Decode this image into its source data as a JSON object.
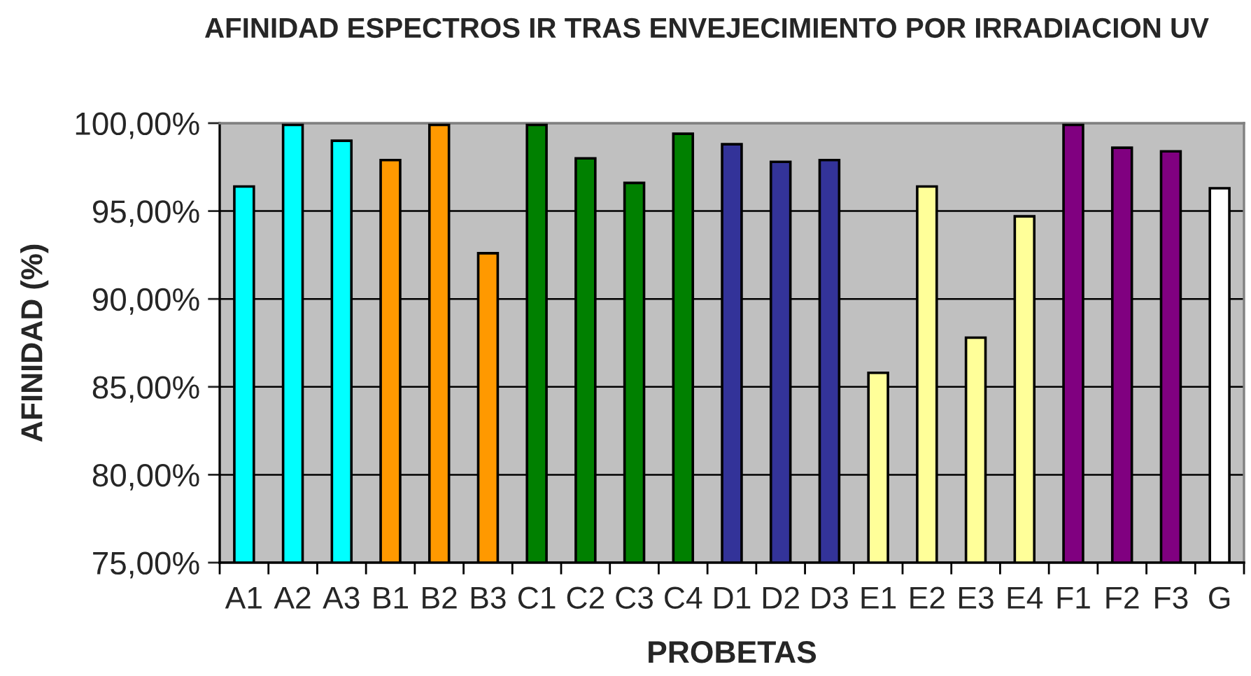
{
  "chart_data": {
    "type": "bar",
    "title": "AFINIDAD ESPECTROS IR TRAS ENVEJECIMIENTO POR IRRADIACION UV",
    "xlabel": "PROBETAS",
    "ylabel": "AFINIDAD (%)",
    "categories": [
      "A1",
      "A2",
      "A3",
      "B1",
      "B2",
      "B3",
      "C1",
      "C2",
      "C3",
      "C4",
      "D1",
      "D2",
      "D3",
      "E1",
      "E2",
      "E3",
      "E4",
      "F1",
      "F2",
      "F3",
      "G"
    ],
    "values": [
      96.4,
      99.9,
      99.0,
      97.9,
      99.9,
      92.6,
      99.9,
      98.0,
      96.6,
      99.4,
      98.8,
      97.8,
      97.9,
      85.8,
      96.4,
      87.8,
      94.7,
      99.9,
      98.6,
      98.4,
      96.3
    ],
    "colors": [
      "#00ffff",
      "#00ffff",
      "#00ffff",
      "#ff9900",
      "#ff9900",
      "#ff9900",
      "#008000",
      "#008000",
      "#008000",
      "#008000",
      "#333399",
      "#333399",
      "#333399",
      "#ffff99",
      "#ffff99",
      "#ffff99",
      "#ffff99",
      "#800080",
      "#800080",
      "#800080",
      "#ffffff"
    ],
    "ylim": [
      75,
      100
    ],
    "yticks": [
      {
        "value": 75,
        "label": "75,00%"
      },
      {
        "value": 80,
        "label": "80,00%"
      },
      {
        "value": 85,
        "label": "85,00%"
      },
      {
        "value": 90,
        "label": "90,00%"
      },
      {
        "value": 95,
        "label": "95,00%"
      },
      {
        "value": 100,
        "label": "100,00%"
      }
    ],
    "grid": "y"
  }
}
